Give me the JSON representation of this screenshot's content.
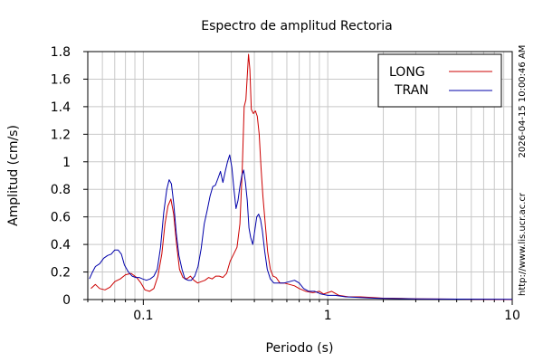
{
  "chart_data": {
    "type": "line",
    "title": "Espectro de amplitud Rectoria",
    "xlabel": "Periodo (s)",
    "ylabel": "Amplitud (cm/s)",
    "x_scale": "log",
    "xlim": [
      0.05,
      10
    ],
    "ylim": [
      0,
      1.8
    ],
    "grid": true,
    "legend_position": "top-right",
    "x_ticks": [
      {
        "value": 0.1,
        "label": "0.1"
      },
      {
        "value": 1,
        "label": "1"
      },
      {
        "value": 10,
        "label": "10"
      }
    ],
    "y_ticks": [
      {
        "value": 0,
        "label": "0"
      },
      {
        "value": 0.2,
        "label": "0.2"
      },
      {
        "value": 0.4,
        "label": "0.4"
      },
      {
        "value": 0.6,
        "label": "0.6"
      },
      {
        "value": 0.8,
        "label": "0.8"
      },
      {
        "value": 1.0,
        "label": "1"
      },
      {
        "value": 1.2,
        "label": "1.2"
      },
      {
        "value": 1.4,
        "label": "1.4"
      },
      {
        "value": 1.6,
        "label": "1.6"
      },
      {
        "value": 1.8,
        "label": "1.8"
      }
    ],
    "series": [
      {
        "name": "LONG",
        "color": "#cc0000",
        "points": [
          [
            0.052,
            0.08
          ],
          [
            0.055,
            0.11
          ],
          [
            0.058,
            0.08
          ],
          [
            0.062,
            0.07
          ],
          [
            0.066,
            0.09
          ],
          [
            0.07,
            0.13
          ],
          [
            0.075,
            0.15
          ],
          [
            0.08,
            0.18
          ],
          [
            0.086,
            0.19
          ],
          [
            0.092,
            0.16
          ],
          [
            0.097,
            0.12
          ],
          [
            0.102,
            0.07
          ],
          [
            0.108,
            0.06
          ],
          [
            0.114,
            0.08
          ],
          [
            0.12,
            0.17
          ],
          [
            0.126,
            0.33
          ],
          [
            0.131,
            0.55
          ],
          [
            0.136,
            0.68
          ],
          [
            0.141,
            0.73
          ],
          [
            0.146,
            0.62
          ],
          [
            0.151,
            0.42
          ],
          [
            0.157,
            0.22
          ],
          [
            0.164,
            0.16
          ],
          [
            0.172,
            0.15
          ],
          [
            0.18,
            0.17
          ],
          [
            0.188,
            0.14
          ],
          [
            0.197,
            0.12
          ],
          [
            0.206,
            0.13
          ],
          [
            0.216,
            0.14
          ],
          [
            0.226,
            0.16
          ],
          [
            0.236,
            0.15
          ],
          [
            0.247,
            0.17
          ],
          [
            0.258,
            0.17
          ],
          [
            0.27,
            0.16
          ],
          [
            0.283,
            0.19
          ],
          [
            0.296,
            0.28
          ],
          [
            0.309,
            0.33
          ],
          [
            0.322,
            0.38
          ],
          [
            0.334,
            0.55
          ],
          [
            0.344,
            0.95
          ],
          [
            0.352,
            1.4
          ],
          [
            0.36,
            1.45
          ],
          [
            0.366,
            1.62
          ],
          [
            0.372,
            1.78
          ],
          [
            0.378,
            1.67
          ],
          [
            0.385,
            1.38
          ],
          [
            0.395,
            1.35
          ],
          [
            0.405,
            1.37
          ],
          [
            0.415,
            1.33
          ],
          [
            0.425,
            1.2
          ],
          [
            0.435,
            0.95
          ],
          [
            0.445,
            0.75
          ],
          [
            0.458,
            0.55
          ],
          [
            0.472,
            0.35
          ],
          [
            0.488,
            0.22
          ],
          [
            0.505,
            0.17
          ],
          [
            0.525,
            0.16
          ],
          [
            0.55,
            0.12
          ],
          [
            0.58,
            0.12
          ],
          [
            0.62,
            0.11
          ],
          [
            0.66,
            0.1
          ],
          [
            0.7,
            0.08
          ],
          [
            0.76,
            0.06
          ],
          [
            0.83,
            0.05
          ],
          [
            0.9,
            0.06
          ],
          [
            0.95,
            0.04
          ],
          [
            1.0,
            0.05
          ],
          [
            1.05,
            0.06
          ],
          [
            1.15,
            0.03
          ],
          [
            1.3,
            0.02
          ],
          [
            1.5,
            0.02
          ],
          [
            1.75,
            0.015
          ],
          [
            2.0,
            0.01
          ],
          [
            2.5,
            0.008
          ],
          [
            3.0,
            0.005
          ],
          [
            5.0,
            0.003
          ],
          [
            10.0,
            0.0
          ]
        ]
      },
      {
        "name": "TRAN",
        "color": "#0000aa",
        "points": [
          [
            0.051,
            0.15
          ],
          [
            0.053,
            0.2
          ],
          [
            0.055,
            0.24
          ],
          [
            0.058,
            0.26
          ],
          [
            0.061,
            0.3
          ],
          [
            0.064,
            0.32
          ],
          [
            0.067,
            0.33
          ],
          [
            0.07,
            0.36
          ],
          [
            0.073,
            0.36
          ],
          [
            0.076,
            0.33
          ],
          [
            0.079,
            0.25
          ],
          [
            0.083,
            0.2
          ],
          [
            0.087,
            0.17
          ],
          [
            0.091,
            0.16
          ],
          [
            0.095,
            0.16
          ],
          [
            0.099,
            0.15
          ],
          [
            0.104,
            0.14
          ],
          [
            0.109,
            0.15
          ],
          [
            0.114,
            0.17
          ],
          [
            0.119,
            0.22
          ],
          [
            0.124,
            0.38
          ],
          [
            0.129,
            0.63
          ],
          [
            0.134,
            0.8
          ],
          [
            0.138,
            0.87
          ],
          [
            0.142,
            0.84
          ],
          [
            0.146,
            0.7
          ],
          [
            0.151,
            0.48
          ],
          [
            0.156,
            0.32
          ],
          [
            0.162,
            0.22
          ],
          [
            0.168,
            0.15
          ],
          [
            0.175,
            0.14
          ],
          [
            0.182,
            0.14
          ],
          [
            0.19,
            0.17
          ],
          [
            0.198,
            0.24
          ],
          [
            0.206,
            0.37
          ],
          [
            0.214,
            0.55
          ],
          [
            0.222,
            0.65
          ],
          [
            0.23,
            0.75
          ],
          [
            0.238,
            0.82
          ],
          [
            0.246,
            0.83
          ],
          [
            0.254,
            0.88
          ],
          [
            0.262,
            0.93
          ],
          [
            0.27,
            0.85
          ],
          [
            0.278,
            0.93
          ],
          [
            0.286,
            1.0
          ],
          [
            0.294,
            1.05
          ],
          [
            0.302,
            0.96
          ],
          [
            0.31,
            0.8
          ],
          [
            0.318,
            0.66
          ],
          [
            0.326,
            0.72
          ],
          [
            0.334,
            0.82
          ],
          [
            0.342,
            0.9
          ],
          [
            0.35,
            0.94
          ],
          [
            0.358,
            0.85
          ],
          [
            0.366,
            0.72
          ],
          [
            0.374,
            0.52
          ],
          [
            0.382,
            0.45
          ],
          [
            0.392,
            0.4
          ],
          [
            0.402,
            0.5
          ],
          [
            0.412,
            0.6
          ],
          [
            0.422,
            0.62
          ],
          [
            0.432,
            0.58
          ],
          [
            0.442,
            0.5
          ],
          [
            0.455,
            0.35
          ],
          [
            0.47,
            0.22
          ],
          [
            0.488,
            0.15
          ],
          [
            0.51,
            0.12
          ],
          [
            0.54,
            0.12
          ],
          [
            0.58,
            0.12
          ],
          [
            0.62,
            0.13
          ],
          [
            0.66,
            0.14
          ],
          [
            0.7,
            0.12
          ],
          [
            0.74,
            0.08
          ],
          [
            0.79,
            0.06
          ],
          [
            0.85,
            0.06
          ],
          [
            0.92,
            0.04
          ],
          [
            1.0,
            0.03
          ],
          [
            1.1,
            0.03
          ],
          [
            1.25,
            0.02
          ],
          [
            1.5,
            0.015
          ],
          [
            1.8,
            0.01
          ],
          [
            2.0,
            0.008
          ],
          [
            3.0,
            0.005
          ],
          [
            5.0,
            0.003
          ],
          [
            10.0,
            0.002
          ]
        ]
      }
    ],
    "side_text": {
      "timestamp": "2026-04-15 10:00:46 AM",
      "url": "http://www.lis.ucr.ac.cr"
    }
  }
}
